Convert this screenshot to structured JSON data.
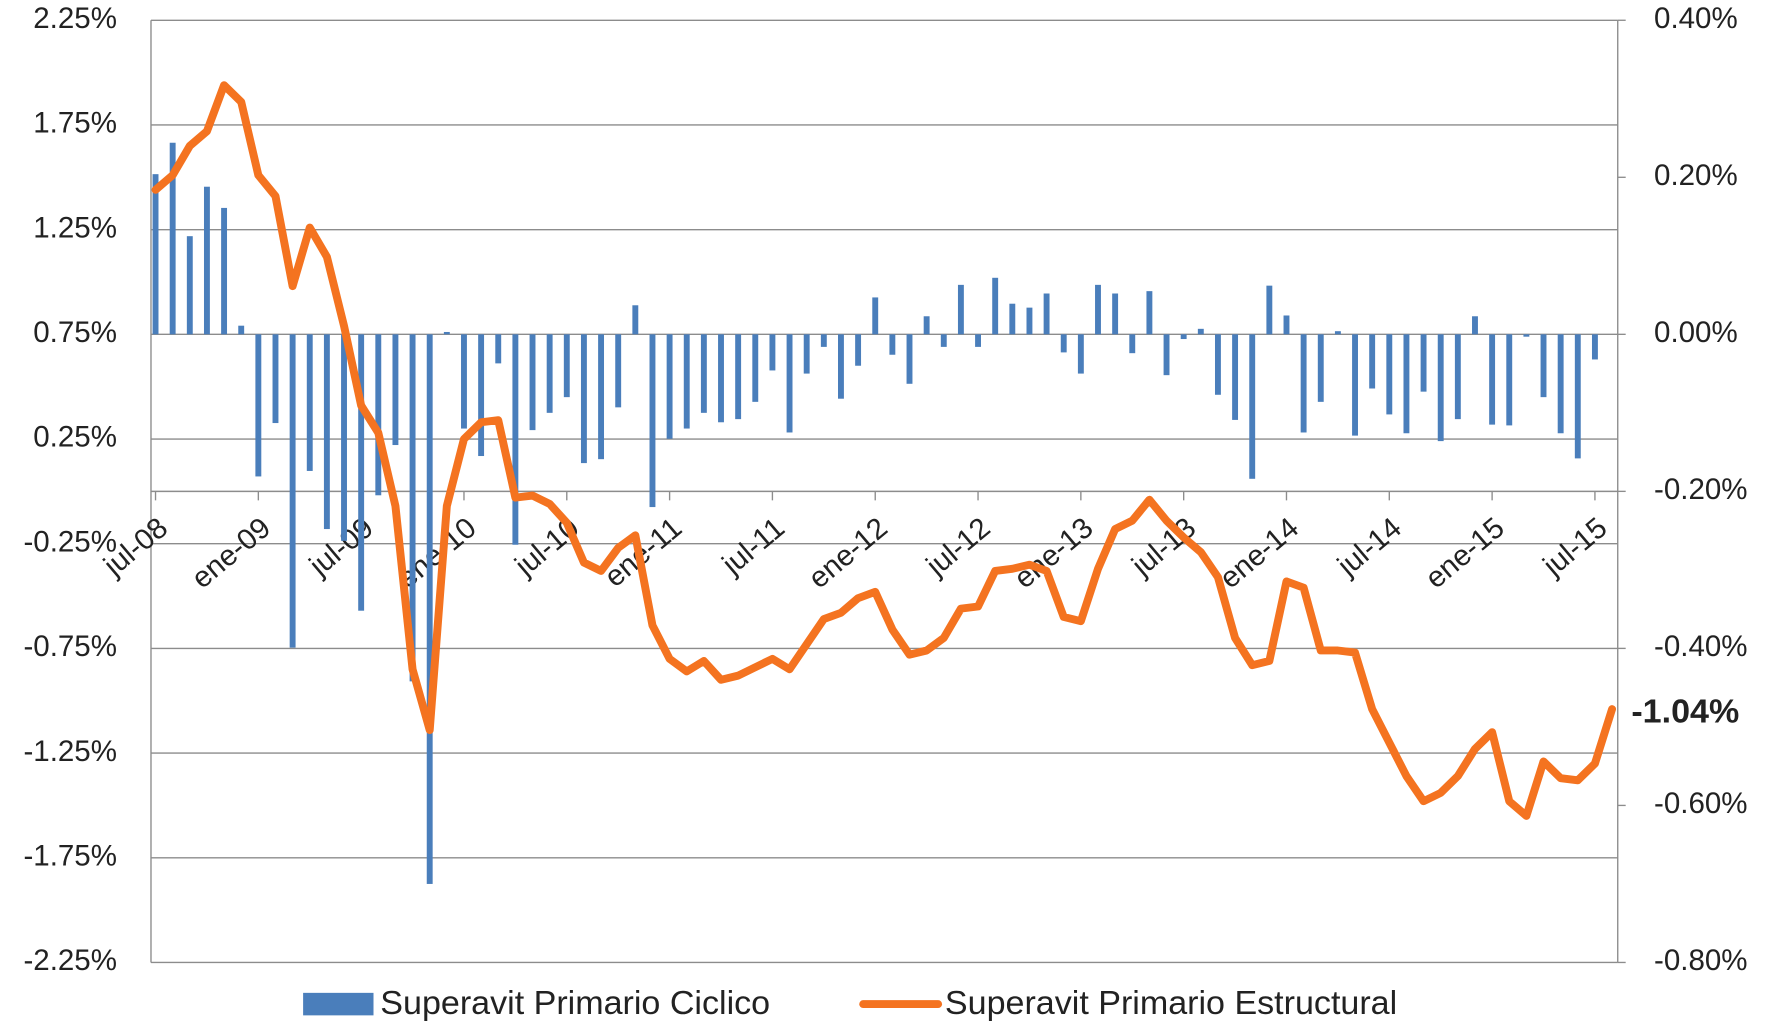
{
  "chart_data": {
    "type": "bar_line",
    "categories": [
      "jul-08",
      null,
      null,
      null,
      null,
      null,
      "ene-09",
      null,
      null,
      null,
      null,
      null,
      "jul-09",
      null,
      null,
      null,
      null,
      null,
      "ene-10",
      null,
      null,
      null,
      null,
      null,
      "jul-10",
      null,
      null,
      null,
      null,
      null,
      "ene-11",
      null,
      null,
      null,
      null,
      null,
      "jul-11",
      null,
      null,
      null,
      null,
      null,
      "ene-12",
      null,
      null,
      null,
      null,
      null,
      "jul-12",
      null,
      null,
      null,
      null,
      null,
      "ene-13",
      null,
      null,
      null,
      null,
      null,
      "jul-13",
      null,
      null,
      null,
      null,
      null,
      "ene-14",
      null,
      null,
      null,
      null,
      null,
      "jul-14",
      null,
      null,
      null,
      null,
      null,
      "ene-15",
      null,
      null,
      null,
      null,
      null,
      "jul-15",
      null
    ],
    "series": [
      {
        "name": "Superavit Primario Ciclico",
        "type": "bar",
        "axis": "y2",
        "color": "#4a7ebb",
        "values": [
          0.204,
          0.244,
          0.125,
          0.188,
          0.161,
          0.011,
          -0.181,
          -0.113,
          -0.399,
          -0.174,
          -0.248,
          -0.263,
          -0.352,
          -0.205,
          -0.141,
          -0.442,
          -0.7,
          0.003,
          -0.12,
          -0.155,
          -0.037,
          -0.268,
          -0.122,
          -0.1,
          -0.08,
          -0.164,
          -0.159,
          -0.093,
          0.037,
          -0.22,
          -0.133,
          -0.12,
          -0.1,
          -0.112,
          -0.108,
          -0.086,
          -0.046,
          -0.125,
          -0.05,
          -0.016,
          -0.082,
          -0.04,
          0.047,
          -0.026,
          -0.063,
          0.023,
          -0.016,
          0.063,
          -0.016,
          0.072,
          0.039,
          0.034,
          0.052,
          -0.023,
          -0.05,
          0.063,
          0.052,
          -0.024,
          0.055,
          -0.052,
          -0.006,
          0.007,
          -0.077,
          -0.109,
          -0.184,
          0.062,
          0.024,
          -0.125,
          -0.086,
          0.004,
          -0.129,
          -0.069,
          -0.102,
          -0.126,
          -0.073,
          -0.136,
          -0.108,
          0.023,
          -0.115,
          -0.116,
          -0.003,
          -0.08,
          -0.126,
          -0.158,
          -0.032,
          null
        ]
      },
      {
        "name": "Superavit Primario Estructural",
        "type": "line",
        "axis": "y",
        "color": "#f47320",
        "values": [
          1.44,
          1.51,
          1.65,
          1.72,
          1.94,
          1.86,
          1.51,
          1.41,
          0.98,
          1.26,
          1.12,
          0.79,
          0.41,
          0.28,
          -0.07,
          -0.85,
          -1.14,
          -0.07,
          0.25,
          0.33,
          0.34,
          -0.03,
          -0.02,
          -0.06,
          -0.15,
          -0.34,
          -0.38,
          -0.27,
          -0.21,
          -0.64,
          -0.8,
          -0.86,
          -0.81,
          -0.9,
          -0.88,
          -0.84,
          -0.8,
          -0.85,
          -0.73,
          -0.61,
          -0.58,
          -0.51,
          -0.48,
          -0.66,
          -0.78,
          -0.76,
          -0.7,
          -0.56,
          -0.55,
          -0.38,
          -0.37,
          -0.35,
          -0.38,
          -0.6,
          -0.62,
          -0.37,
          -0.18,
          -0.14,
          -0.04,
          -0.14,
          -0.22,
          -0.29,
          -0.41,
          -0.7,
          -0.83,
          -0.81,
          -0.43,
          -0.46,
          -0.76,
          -0.76,
          -0.77,
          -1.04,
          -1.2,
          -1.36,
          -1.48,
          -1.44,
          -1.36,
          -1.23,
          -1.15,
          -1.48,
          -1.55,
          -1.29,
          -1.37,
          -1.38,
          -1.3,
          -1.04
        ],
        "value_labels": [
          null,
          null,
          null,
          null,
          null,
          null,
          null,
          null,
          null,
          null,
          null,
          null,
          null,
          null,
          null,
          null,
          null,
          null,
          null,
          null,
          null,
          null,
          null,
          null,
          null,
          null,
          null,
          null,
          null,
          null,
          null,
          null,
          null,
          null,
          null,
          null,
          null,
          null,
          null,
          null,
          null,
          null,
          null,
          null,
          null,
          null,
          null,
          null,
          null,
          null,
          null,
          null,
          null,
          null,
          null,
          null,
          null,
          null,
          null,
          null,
          null,
          null,
          null,
          null,
          null,
          null,
          null,
          null,
          null,
          null,
          null,
          null,
          null,
          null,
          null,
          null,
          null,
          null,
          null,
          null,
          null,
          null,
          null,
          null,
          null,
          "-1.04%"
        ]
      }
    ],
    "ylim": [
      -2.25,
      2.25
    ],
    "yticks": [
      {
        "value": 2.25,
        "label": "2.25%"
      },
      {
        "value": 1.75,
        "label": "1.75%"
      },
      {
        "value": 1.25,
        "label": "1.25%"
      },
      {
        "value": 0.75,
        "label": "0.75%"
      },
      {
        "value": 0.25,
        "label": "0.25%"
      },
      {
        "value": -0.25,
        "label": "-0.25%"
      },
      {
        "value": -0.75,
        "label": "-0.75%"
      },
      {
        "value": -1.25,
        "label": "-1.25%"
      },
      {
        "value": -1.75,
        "label": "-1.75%"
      },
      {
        "value": -2.25,
        "label": "-2.25%"
      }
    ],
    "y2lim": [
      -0.8,
      0.4
    ],
    "y2ticks": [
      {
        "value": 0.4,
        "label": "0.40%"
      },
      {
        "value": 0.2,
        "label": "0.20%"
      },
      {
        "value": 0,
        "label": "0.00%"
      },
      {
        "value": -0.2,
        "label": "-0.20%"
      },
      {
        "value": -0.4,
        "label": "-0.40%"
      },
      {
        "value": -0.6,
        "label": "-0.60%"
      },
      {
        "value": -0.8,
        "label": "-0.80%"
      }
    ],
    "grid": true,
    "legend": "bottom"
  }
}
